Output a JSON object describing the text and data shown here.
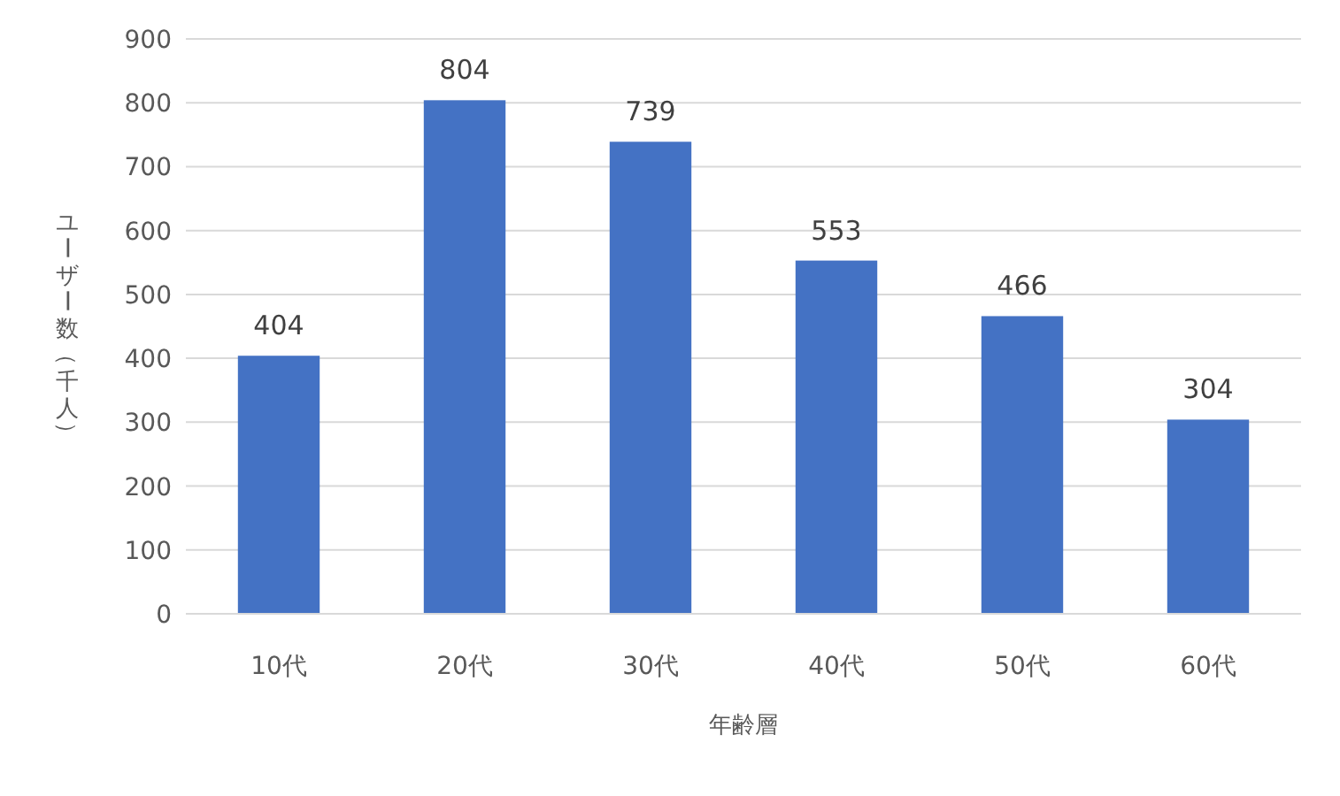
{
  "chart_data": {
    "type": "bar",
    "xlabel": "年齢層",
    "ylabel": "ユーザー数（千人）",
    "categories": [
      "10代",
      "20代",
      "30代",
      "40代",
      "50代",
      "60代"
    ],
    "values": [
      404,
      804,
      739,
      553,
      466,
      304
    ],
    "color": "#4472c4",
    "ylim": [
      0,
      900
    ],
    "yticks": [
      0,
      100,
      200,
      300,
      400,
      500,
      600,
      700,
      800,
      900
    ],
    "grid": "y",
    "data_labels": true
  }
}
